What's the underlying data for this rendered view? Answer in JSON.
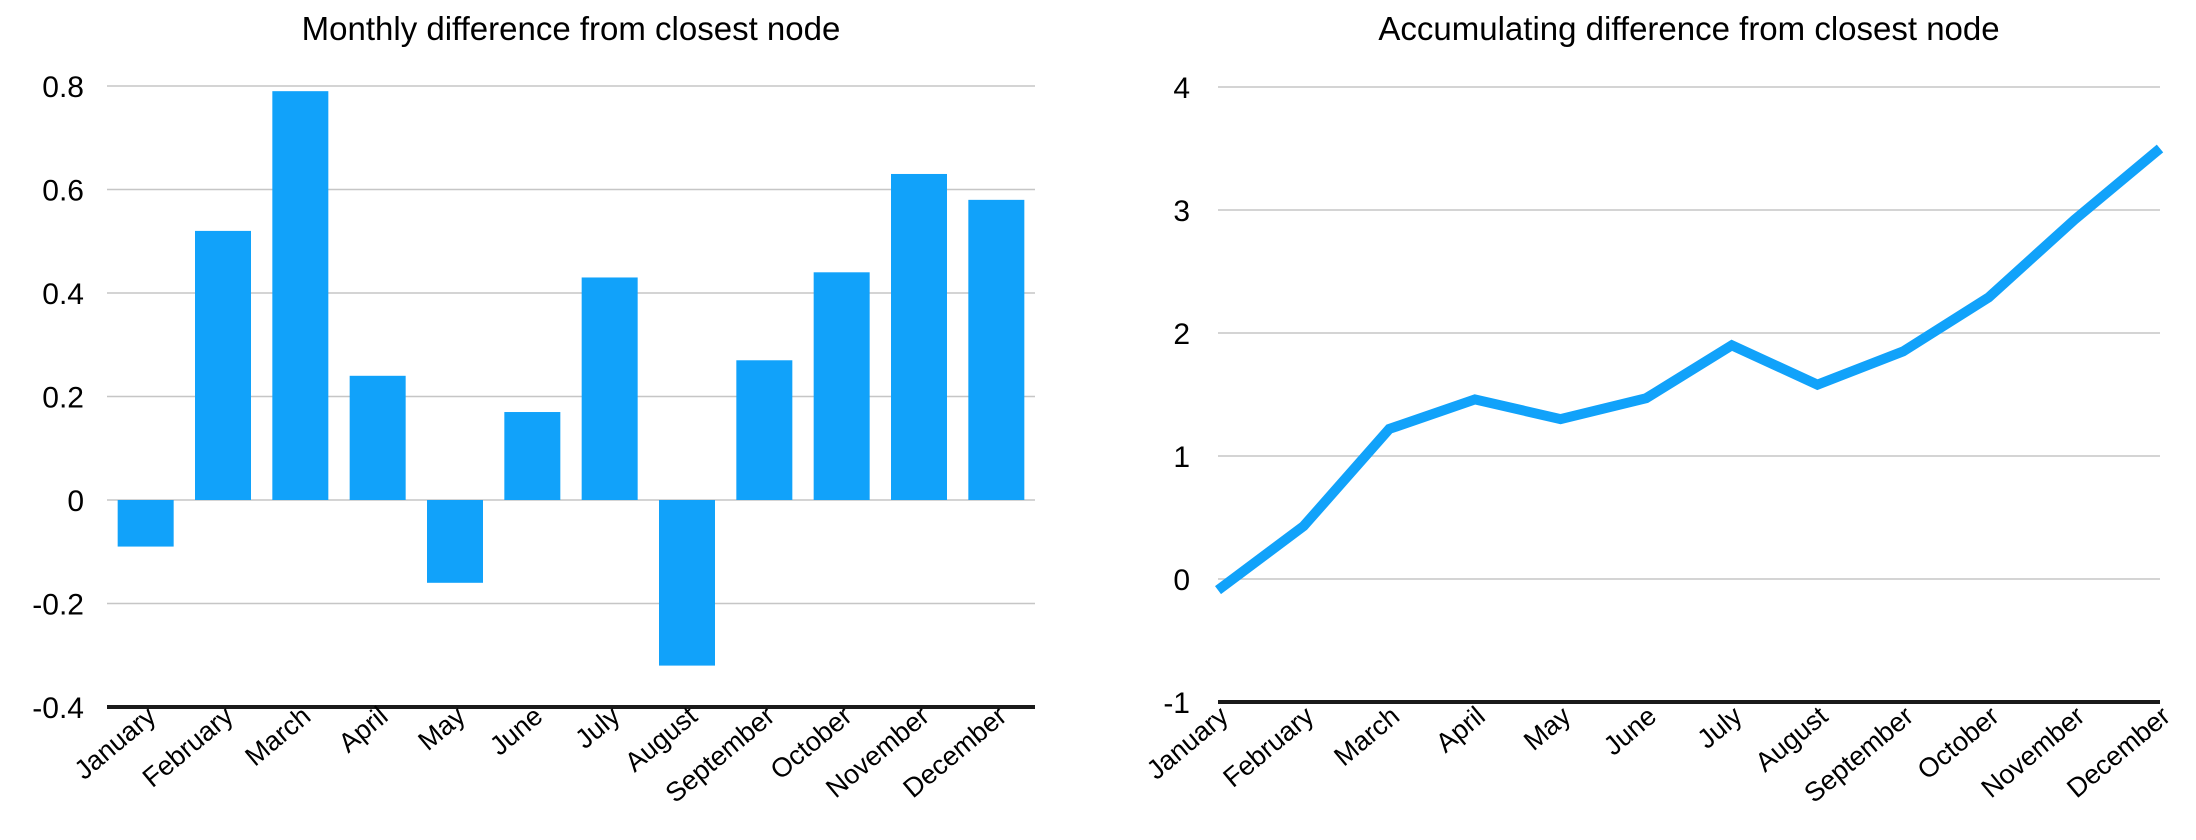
{
  "page": {
    "background": "#ffffff"
  },
  "colors": {
    "accent_blue": "#11a2fa",
    "gridline": "#c6c6c6",
    "axis": "#1a1a1a",
    "text": "#000000"
  },
  "chart_data": [
    {
      "type": "bar",
      "title": "Monthly difference from closest node",
      "categories": [
        "January",
        "February",
        "March",
        "April",
        "May",
        "June",
        "July",
        "August",
        "September",
        "October",
        "November",
        "December"
      ],
      "values": [
        -0.09,
        0.52,
        0.79,
        0.24,
        -0.16,
        0.17,
        0.43,
        -0.32,
        0.27,
        0.44,
        0.63,
        0.58
      ],
      "xlabel": "",
      "ylabel": "",
      "ylim": [
        -0.4,
        0.8
      ],
      "yticks": [
        0.8,
        0.6,
        0.4,
        0.2,
        0,
        -0.2,
        -0.4
      ],
      "ytick_labels": [
        "0.8",
        "0.6",
        "0.4",
        "0.2",
        "0",
        "-0.2",
        "-0.4"
      ],
      "bar_color": "#11a2fa",
      "grid": true,
      "legend": "none"
    },
    {
      "type": "line",
      "title": "Accumulating difference from closest node",
      "categories": [
        "January",
        "February",
        "March",
        "April",
        "May",
        "June",
        "July",
        "August",
        "September",
        "October",
        "November",
        "December"
      ],
      "values": [
        -0.09,
        0.43,
        1.22,
        1.46,
        1.3,
        1.47,
        1.9,
        1.58,
        1.85,
        2.29,
        2.92,
        3.5
      ],
      "xlabel": "",
      "ylabel": "",
      "ylim": [
        -1,
        4
      ],
      "yticks": [
        4,
        3,
        2,
        1,
        0,
        -1
      ],
      "ytick_labels": [
        "4",
        "3",
        "2",
        "1",
        "0",
        "-1"
      ],
      "line_color": "#11a2fa",
      "grid": true,
      "legend": "none"
    }
  ]
}
